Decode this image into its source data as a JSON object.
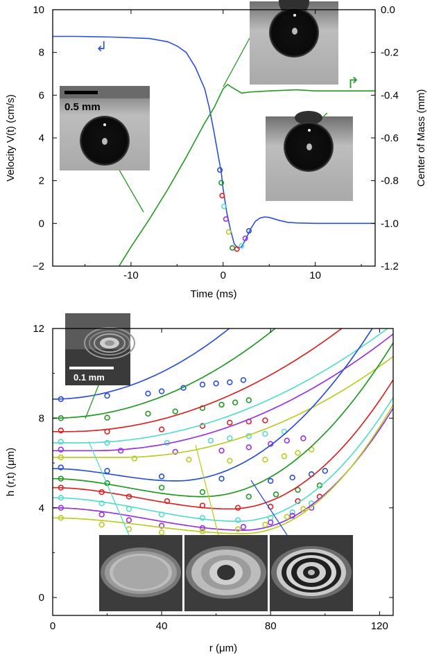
{
  "chart_data": [
    {
      "type": "line",
      "xlabel": "Time (ms)",
      "ylabel_left": "Velocity V(t) (cm/s)",
      "ylabel_right": "Center of Mass (mm)",
      "xlim": [
        -18.5,
        16.5
      ],
      "ylim_left": [
        -2,
        10
      ],
      "ylim_right": [
        -1.2,
        0.0
      ],
      "xticks": [
        "-10",
        "0",
        "10"
      ],
      "yticks_left": [
        "10",
        "8",
        "6",
        "4",
        "2",
        "0",
        "−2"
      ],
      "yticks_right": [
        "0.0",
        "-0.2",
        "-0.4",
        "-0.6",
        "-0.8",
        "-1.0",
        "-1.2"
      ],
      "inset_scale_label": "0.5 mm",
      "series": [
        {
          "color": "#2a4fd8",
          "axis": "left",
          "points": [
            [
              -18.5,
              8.75
            ],
            [
              -16,
              8.75
            ],
            [
              -12,
              8.72
            ],
            [
              -8,
              8.65
            ],
            [
              -6,
              8.5
            ],
            [
              -5,
              8.3
            ],
            [
              -4,
              8.0
            ],
            [
              -3,
              7.3
            ],
            [
              -2,
              6.3
            ],
            [
              -1.5,
              5.4
            ],
            [
              -1,
              4.3
            ],
            [
              -0.5,
              3.1
            ],
            [
              -0.2,
              2.4
            ],
            [
              0,
              1.6
            ],
            [
              0.4,
              0.5
            ],
            [
              0.8,
              -0.3
            ],
            [
              1.2,
              -0.95
            ],
            [
              1.6,
              -1.15
            ],
            [
              2.0,
              -1.1
            ],
            [
              2.5,
              -0.7
            ],
            [
              3.0,
              -0.25
            ],
            [
              3.5,
              0.1
            ],
            [
              4.0,
              0.25
            ],
            [
              4.5,
              0.3
            ],
            [
              5.0,
              0.28
            ],
            [
              6,
              0.15
            ],
            [
              7,
              0.05
            ],
            [
              8,
              0.02
            ],
            [
              10,
              0.0
            ],
            [
              16.5,
              0.0
            ]
          ]
        },
        {
          "color": "#229922",
          "axis": "right",
          "points": [
            [
              -11.3,
              -1.2
            ],
            [
              -10,
              -1.11
            ],
            [
              -8,
              -0.98
            ],
            [
              -6,
              -0.84
            ],
            [
              -4,
              -0.69
            ],
            [
              -2,
              -0.53
            ],
            [
              -1,
              -0.46
            ],
            [
              0,
              -0.37
            ],
            [
              0.5,
              -0.35
            ],
            [
              1.0,
              -0.365
            ],
            [
              2,
              -0.39
            ],
            [
              3,
              -0.385
            ],
            [
              5,
              -0.38
            ],
            [
              8,
              -0.375
            ],
            [
              10,
              -0.38
            ],
            [
              13,
              -0.38
            ],
            [
              16.5,
              -0.38
            ]
          ]
        }
      ],
      "markers": [
        {
          "x": -0.35,
          "y": 2.5,
          "color": "#2a4fd8"
        },
        {
          "x": -0.2,
          "y": 1.9,
          "color": "#229922"
        },
        {
          "x": -0.1,
          "y": 1.3,
          "color": "#dd2222"
        },
        {
          "x": 0.1,
          "y": 0.8,
          "color": "#55ddcc"
        },
        {
          "x": 0.3,
          "y": 0.2,
          "color": "#9933dd"
        },
        {
          "x": 0.6,
          "y": -0.4,
          "color": "#bbcc22"
        },
        {
          "x": 1.0,
          "y": -1.15,
          "color": "#229922"
        },
        {
          "x": 1.5,
          "y": -1.2,
          "color": "#dd2222"
        },
        {
          "x": 2.0,
          "y": -1.05,
          "color": "#55ddcc"
        },
        {
          "x": 2.4,
          "y": -0.7,
          "color": "#9933dd"
        },
        {
          "x": 2.8,
          "y": -0.35,
          "color": "#2a4fd8"
        }
      ],
      "annotations": [
        {
          "text": "↲",
          "axis": "left"
        },
        {
          "text": "↱",
          "axis": "right"
        }
      ]
    },
    {
      "type": "line",
      "xlabel": "r (μm)",
      "ylabel": "h (r,t) (μm)",
      "xlim": [
        0,
        125
      ],
      "ylim": [
        -0.8,
        12
      ],
      "xticks": [
        "0",
        "40",
        "80",
        "120"
      ],
      "yticks": [
        "12",
        "8",
        "4",
        "0"
      ],
      "inset_scale_label": "0.1 mm",
      "series": [
        {
          "color": "#2a4fd8",
          "h0": 8.85,
          "rc": 0,
          "k": 0.00075,
          "points": [
            [
              3,
              8.85
            ],
            [
              20,
              9.0
            ],
            [
              35,
              9.1
            ],
            [
              40,
              9.2
            ],
            [
              48,
              9.35
            ],
            [
              55,
              9.5
            ],
            [
              60,
              9.55
            ],
            [
              65,
              9.6
            ],
            [
              70,
              9.7
            ]
          ]
        },
        {
          "color": "#229922",
          "h0": 8.0,
          "rc": 0,
          "k": 0.0006,
          "points": [
            [
              3,
              8.0
            ],
            [
              20,
              8.02
            ],
            [
              35,
              8.2
            ],
            [
              45,
              8.3
            ],
            [
              55,
              8.45
            ],
            [
              62,
              8.6
            ],
            [
              67,
              8.7
            ],
            [
              72,
              8.8
            ]
          ]
        },
        {
          "color": "#dd2222",
          "h0": 7.4,
          "rc": 5,
          "k": 0.00045,
          "points": [
            [
              3,
              7.45
            ],
            [
              20,
              7.4
            ],
            [
              40,
              7.5
            ],
            [
              55,
              7.65
            ],
            [
              65,
              7.8
            ],
            [
              72,
              7.85
            ],
            [
              78,
              7.9
            ]
          ]
        },
        {
          "color": "#55ddcc",
          "h0": 6.9,
          "rc": 10,
          "k": 0.0004,
          "points": [
            [
              3,
              6.95
            ],
            [
              20,
              6.9
            ],
            [
              42,
              6.9
            ],
            [
              58,
              7.0
            ],
            [
              65,
              7.1
            ],
            [
              72,
              7.2
            ],
            [
              78,
              7.3
            ],
            [
              85,
              7.4
            ]
          ]
        },
        {
          "color": "#9933dd",
          "h0": 6.55,
          "rc": 15,
          "k": 0.00043,
          "points": [
            [
              3,
              6.6
            ],
            [
              25,
              6.55
            ],
            [
              45,
              6.5
            ],
            [
              62,
              6.55
            ],
            [
              72,
              6.7
            ],
            [
              80,
              6.85
            ],
            [
              86,
              7.0
            ],
            [
              92,
              7.1
            ]
          ]
        },
        {
          "color": "#bbcc22",
          "h0": 6.25,
          "rc": 25,
          "k": 0.00045,
          "points": [
            [
              3,
              6.25
            ],
            [
              30,
              6.2
            ],
            [
              50,
              6.15
            ],
            [
              65,
              6.1
            ],
            [
              78,
              6.15
            ],
            [
              85,
              6.3
            ],
            [
              90,
              6.45
            ],
            [
              95,
              6.6
            ]
          ]
        },
        {
          "color": "#2a4fd8",
          "h0": 5.75,
          "rc": 45,
          "k": 0.0013,
          "endY": 5.2,
          "points": [
            [
              3,
              5.8
            ],
            [
              20,
              5.65
            ],
            [
              40,
              5.4
            ],
            [
              62,
              5.3
            ],
            [
              80,
              5.2
            ],
            [
              88,
              5.35
            ],
            [
              95,
              5.5
            ],
            [
              100,
              5.65
            ]
          ]
        },
        {
          "color": "#229922",
          "h0": 5.3,
          "rc": 55,
          "k": 0.0014,
          "endY": 4.5,
          "points": [
            [
              3,
              5.3
            ],
            [
              20,
              5.1
            ],
            [
              40,
              4.9
            ],
            [
              55,
              4.7
            ],
            [
              72,
              4.5
            ],
            [
              82,
              4.6
            ],
            [
              90,
              4.8
            ],
            [
              98,
              5.0
            ]
          ]
        },
        {
          "color": "#dd2222",
          "h0": 4.9,
          "rc": 65,
          "k": 0.0016,
          "endY": 3.95,
          "points": [
            [
              3,
              4.9
            ],
            [
              18,
              4.7
            ],
            [
              28,
              4.5
            ],
            [
              42,
              4.3
            ],
            [
              55,
              4.1
            ],
            [
              68,
              4.0
            ],
            [
              80,
              4.05
            ],
            [
              90,
              4.3
            ],
            [
              98,
              4.5
            ]
          ]
        },
        {
          "color": "#55ddcc",
          "h0": 4.45,
          "rc": 68,
          "k": 0.0017,
          "endY": 3.4,
          "points": [
            [
              3,
              4.45
            ],
            [
              18,
              4.2
            ],
            [
              28,
              3.95
            ],
            [
              40,
              3.7
            ],
            [
              55,
              3.55
            ],
            [
              68,
              3.45
            ],
            [
              80,
              3.55
            ],
            [
              88,
              3.8
            ],
            [
              95,
              4.2
            ]
          ]
        },
        {
          "color": "#9933dd",
          "h0": 4.0,
          "rc": 70,
          "k": 0.0018,
          "endY": 3.0,
          "points": [
            [
              3,
              4.0
            ],
            [
              18,
              3.7
            ],
            [
              28,
              3.45
            ],
            [
              40,
              3.2
            ],
            [
              55,
              3.1
            ],
            [
              70,
              3.15
            ],
            [
              80,
              3.35
            ],
            [
              88,
              3.65
            ],
            [
              95,
              4.0
            ]
          ]
        },
        {
          "color": "#bbcc22",
          "h0": 3.55,
          "rc": 70,
          "k": 0.0019,
          "endY": 2.85,
          "points": [
            [
              3,
              3.55
            ],
            [
              18,
              3.25
            ],
            [
              28,
              3.05
            ],
            [
              40,
              2.9
            ],
            [
              55,
              2.95
            ],
            [
              68,
              3.05
            ],
            [
              78,
              3.25
            ],
            [
              86,
              3.6
            ],
            [
              92,
              3.95
            ]
          ]
        }
      ]
    }
  ]
}
